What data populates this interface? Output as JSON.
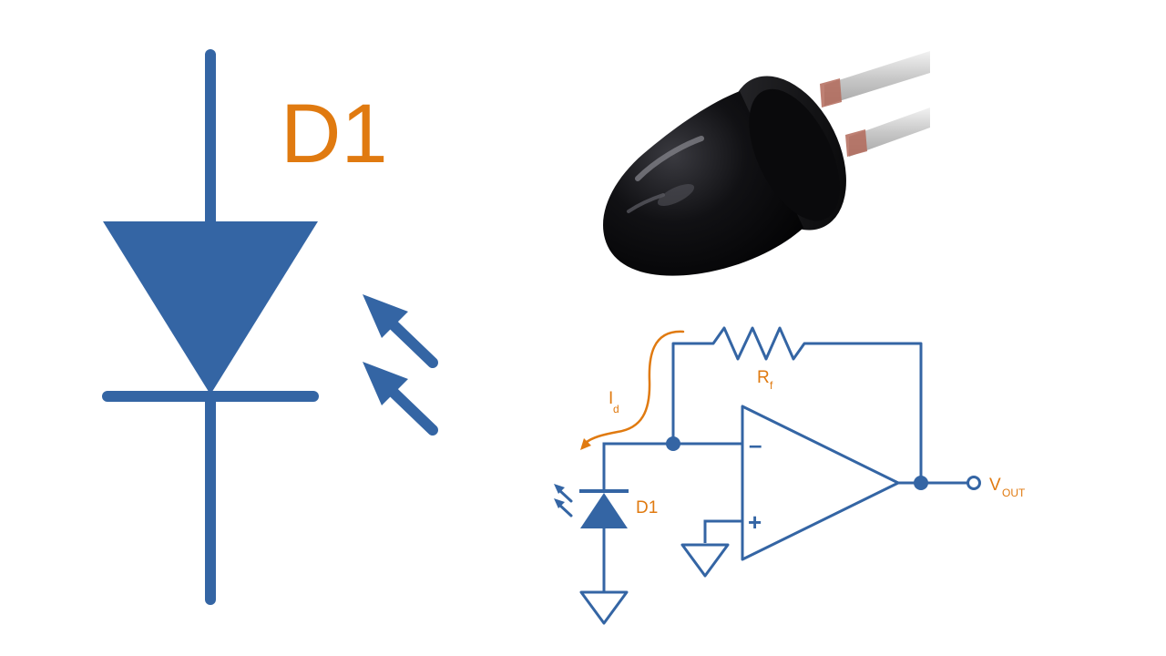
{
  "colors": {
    "wire": "#3465a4",
    "label": "#e07a10",
    "background": "#ffffff",
    "component_body": "#0d0d0f",
    "component_leads": "#d4d4d4"
  },
  "symbol": {
    "designator": "D1",
    "icon": "photodiode-symbol-icon",
    "light_arrows_icon": "incident-light-arrows-icon"
  },
  "photo": {
    "icon": "photodiode-component-photo"
  },
  "circuit": {
    "current_label": "I",
    "current_subscript": "d",
    "resistor_label": "R",
    "resistor_subscript": "f",
    "diode_label": "D1",
    "output_label": "V",
    "output_subscript": "OUT",
    "inverting_sign": "–",
    "noninverting_sign": "+"
  }
}
